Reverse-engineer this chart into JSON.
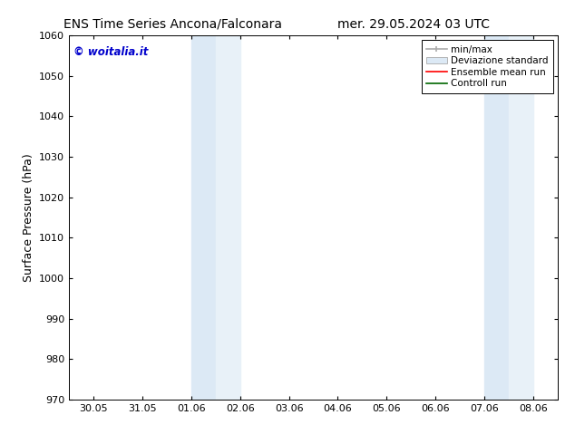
{
  "title_left": "ENS Time Series Ancona/Falconara",
  "title_right": "mer. 29.05.2024 03 UTC",
  "ylabel": "Surface Pressure (hPa)",
  "ylim": [
    970,
    1060
  ],
  "yticks": [
    970,
    980,
    990,
    1000,
    1010,
    1020,
    1030,
    1040,
    1050,
    1060
  ],
  "xtick_labels": [
    "30.05",
    "31.05",
    "01.06",
    "02.06",
    "03.06",
    "04.06",
    "05.06",
    "06.06",
    "07.06",
    "08.06"
  ],
  "xtick_positions": [
    0,
    1,
    2,
    3,
    4,
    5,
    6,
    7,
    8,
    9
  ],
  "xlim": [
    -0.5,
    9.5
  ],
  "shaded_bands": [
    {
      "x_start": 2.0,
      "x_end": 2.5
    },
    {
      "x_start": 2.5,
      "x_end": 3.0
    },
    {
      "x_start": 8.0,
      "x_end": 8.5
    },
    {
      "x_start": 8.5,
      "x_end": 9.0
    }
  ],
  "shaded_colors": [
    "#dce9f5",
    "#e8f1f8",
    "#dce9f5",
    "#e8f1f8"
  ],
  "watermark_text": "© woitalia.it",
  "watermark_color": "#0000cc",
  "legend_items": [
    {
      "label": "min/max",
      "color": "#aaaaaa",
      "style": "line_with_caps"
    },
    {
      "label": "Deviazione standard",
      "color": "#dce9f5",
      "style": "filled_rect"
    },
    {
      "label": "Ensemble mean run",
      "color": "red",
      "style": "line"
    },
    {
      "label": "Controll run",
      "color": "green",
      "style": "line"
    }
  ],
  "bg_color": "white",
  "title_fontsize": 10,
  "tick_fontsize": 8,
  "ylabel_fontsize": 9,
  "legend_fontsize": 7.5
}
